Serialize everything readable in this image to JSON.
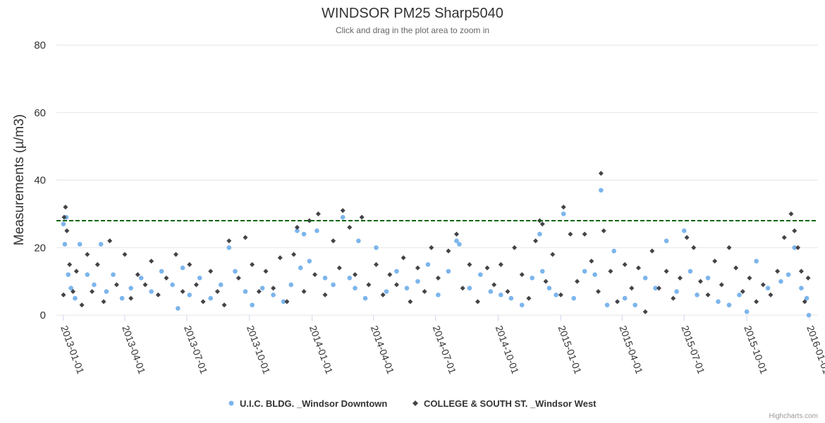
{
  "chart_data": {
    "type": "scatter",
    "title": "WINDSOR PM25 Sharp5040",
    "subtitle": "Click and drag in the plot area to zoom in",
    "ylabel": "Measurements (µ/m3)",
    "xlabel": "",
    "ylim": [
      0,
      80
    ],
    "yticks": [
      0,
      20,
      40,
      60,
      80
    ],
    "xlim": [
      "2013-01-01",
      "2016-01-01"
    ],
    "xticks": [
      "2013-01-01",
      "2013-04-01",
      "2013-07-01",
      "2013-10-01",
      "2014-01-01",
      "2014-04-01",
      "2014-07-01",
      "2014-10-01",
      "2015-01-01",
      "2015-04-01",
      "2015-07-01",
      "2015-10-01",
      "2016-01-01"
    ],
    "reference_line": {
      "y": 28,
      "color": "#006400",
      "style": "dashed"
    },
    "grid": true,
    "legend_position": "bottom",
    "credits": "Highcharts.com",
    "series": [
      {
        "name": "U.I.C. BLDG. _Windsor Downtown",
        "color": "#7cb5ec",
        "marker": "circle",
        "points": [
          [
            "2013-01-01",
            27
          ],
          [
            "2013-01-03",
            21
          ],
          [
            "2013-01-05",
            29
          ],
          [
            "2013-01-08",
            12
          ],
          [
            "2013-01-12",
            8
          ],
          [
            "2013-01-18",
            5
          ],
          [
            "2013-01-25",
            21
          ],
          [
            "2013-02-05",
            12
          ],
          [
            "2013-02-15",
            9
          ],
          [
            "2013-02-25",
            21
          ],
          [
            "2013-03-05",
            7
          ],
          [
            "2013-03-15",
            12
          ],
          [
            "2013-03-28",
            5
          ],
          [
            "2013-04-10",
            8
          ],
          [
            "2013-04-25",
            11
          ],
          [
            "2013-05-10",
            7
          ],
          [
            "2013-05-25",
            13
          ],
          [
            "2013-06-10",
            9
          ],
          [
            "2013-06-18",
            2
          ],
          [
            "2013-06-25",
            14
          ],
          [
            "2013-07-05",
            6
          ],
          [
            "2013-07-20",
            11
          ],
          [
            "2013-08-05",
            5
          ],
          [
            "2013-08-20",
            9
          ],
          [
            "2013-09-01",
            20
          ],
          [
            "2013-09-10",
            13
          ],
          [
            "2013-09-25",
            7
          ],
          [
            "2013-10-05",
            3
          ],
          [
            "2013-10-20",
            8
          ],
          [
            "2013-11-05",
            6
          ],
          [
            "2013-11-20",
            4
          ],
          [
            "2013-12-01",
            9
          ],
          [
            "2013-12-10",
            25
          ],
          [
            "2013-12-15",
            14
          ],
          [
            "2013-12-20",
            24
          ],
          [
            "2013-12-28",
            16
          ],
          [
            "2014-01-08",
            25
          ],
          [
            "2014-01-20",
            11
          ],
          [
            "2014-02-01",
            9
          ],
          [
            "2014-02-15",
            29
          ],
          [
            "2014-02-25",
            11
          ],
          [
            "2014-03-05",
            8
          ],
          [
            "2014-03-10",
            22
          ],
          [
            "2014-03-20",
            5
          ],
          [
            "2014-04-05",
            20
          ],
          [
            "2014-04-20",
            7
          ],
          [
            "2014-05-05",
            13
          ],
          [
            "2014-05-20",
            8
          ],
          [
            "2014-06-05",
            10
          ],
          [
            "2014-06-20",
            15
          ],
          [
            "2014-07-05",
            6
          ],
          [
            "2014-07-20",
            13
          ],
          [
            "2014-08-01",
            22
          ],
          [
            "2014-08-05",
            21
          ],
          [
            "2014-08-20",
            8
          ],
          [
            "2014-09-05",
            12
          ],
          [
            "2014-09-20",
            7
          ],
          [
            "2014-10-05",
            6
          ],
          [
            "2014-10-20",
            5
          ],
          [
            "2014-11-05",
            3
          ],
          [
            "2014-11-20",
            11
          ],
          [
            "2014-12-01",
            24
          ],
          [
            "2014-12-05",
            13
          ],
          [
            "2014-12-15",
            8
          ],
          [
            "2014-12-25",
            6
          ],
          [
            "2015-01-05",
            30
          ],
          [
            "2015-01-20",
            5
          ],
          [
            "2015-02-05",
            13
          ],
          [
            "2015-02-20",
            12
          ],
          [
            "2015-03-01",
            37
          ],
          [
            "2015-03-10",
            3
          ],
          [
            "2015-03-20",
            19
          ],
          [
            "2015-04-05",
            5
          ],
          [
            "2015-04-20",
            3
          ],
          [
            "2015-05-05",
            11
          ],
          [
            "2015-05-20",
            8
          ],
          [
            "2015-06-05",
            22
          ],
          [
            "2015-06-20",
            7
          ],
          [
            "2015-07-01",
            25
          ],
          [
            "2015-07-10",
            13
          ],
          [
            "2015-07-20",
            6
          ],
          [
            "2015-08-05",
            11
          ],
          [
            "2015-08-20",
            4
          ],
          [
            "2015-09-05",
            3
          ],
          [
            "2015-09-20",
            6
          ],
          [
            "2015-10-01",
            1
          ],
          [
            "2015-10-15",
            16
          ],
          [
            "2015-11-01",
            8
          ],
          [
            "2015-11-20",
            10
          ],
          [
            "2015-12-01",
            12
          ],
          [
            "2015-12-10",
            20
          ],
          [
            "2015-12-20",
            8
          ],
          [
            "2015-12-28",
            5
          ],
          [
            "2015-12-31",
            0
          ]
        ]
      },
      {
        "name": "COLLEGE & SOUTH ST. _Windsor West",
        "color": "#434348",
        "marker": "diamond",
        "points": [
          [
            "2013-01-01",
            6
          ],
          [
            "2013-01-02",
            29
          ],
          [
            "2013-01-04",
            32
          ],
          [
            "2013-01-06",
            25
          ],
          [
            "2013-01-10",
            15
          ],
          [
            "2013-01-15",
            7
          ],
          [
            "2013-01-20",
            13
          ],
          [
            "2013-01-28",
            3
          ],
          [
            "2013-02-05",
            18
          ],
          [
            "2013-02-12",
            7
          ],
          [
            "2013-02-20",
            15
          ],
          [
            "2013-03-01",
            4
          ],
          [
            "2013-03-10",
            22
          ],
          [
            "2013-03-20",
            9
          ],
          [
            "2013-04-01",
            18
          ],
          [
            "2013-04-10",
            5
          ],
          [
            "2013-04-20",
            12
          ],
          [
            "2013-05-01",
            9
          ],
          [
            "2013-05-10",
            16
          ],
          [
            "2013-05-20",
            6
          ],
          [
            "2013-06-01",
            11
          ],
          [
            "2013-06-15",
            18
          ],
          [
            "2013-06-25",
            7
          ],
          [
            "2013-07-05",
            15
          ],
          [
            "2013-07-15",
            9
          ],
          [
            "2013-07-25",
            4
          ],
          [
            "2013-08-05",
            13
          ],
          [
            "2013-08-15",
            7
          ],
          [
            "2013-08-25",
            3
          ],
          [
            "2013-09-01",
            22
          ],
          [
            "2013-09-15",
            11
          ],
          [
            "2013-09-25",
            23
          ],
          [
            "2013-10-05",
            15
          ],
          [
            "2013-10-15",
            7
          ],
          [
            "2013-10-25",
            13
          ],
          [
            "2013-11-05",
            8
          ],
          [
            "2013-11-15",
            17
          ],
          [
            "2013-11-25",
            4
          ],
          [
            "2013-12-05",
            18
          ],
          [
            "2013-12-10",
            26
          ],
          [
            "2013-12-20",
            7
          ],
          [
            "2013-12-28",
            28
          ],
          [
            "2014-01-05",
            12
          ],
          [
            "2014-01-10",
            30
          ],
          [
            "2014-01-20",
            6
          ],
          [
            "2014-02-01",
            22
          ],
          [
            "2014-02-10",
            14
          ],
          [
            "2014-02-15",
            31
          ],
          [
            "2014-02-25",
            26
          ],
          [
            "2014-03-05",
            12
          ],
          [
            "2014-03-15",
            29
          ],
          [
            "2014-03-25",
            9
          ],
          [
            "2014-04-05",
            15
          ],
          [
            "2014-04-15",
            6
          ],
          [
            "2014-04-25",
            12
          ],
          [
            "2014-05-05",
            9
          ],
          [
            "2014-05-15",
            17
          ],
          [
            "2014-05-25",
            4
          ],
          [
            "2014-06-05",
            14
          ],
          [
            "2014-06-15",
            7
          ],
          [
            "2014-06-25",
            20
          ],
          [
            "2014-07-05",
            11
          ],
          [
            "2014-07-20",
            19
          ],
          [
            "2014-08-01",
            24
          ],
          [
            "2014-08-10",
            8
          ],
          [
            "2014-08-20",
            15
          ],
          [
            "2014-09-01",
            4
          ],
          [
            "2014-09-15",
            14
          ],
          [
            "2014-09-25",
            9
          ],
          [
            "2014-10-05",
            15
          ],
          [
            "2014-10-15",
            7
          ],
          [
            "2014-10-25",
            20
          ],
          [
            "2014-11-05",
            12
          ],
          [
            "2014-11-15",
            5
          ],
          [
            "2014-11-25",
            22
          ],
          [
            "2014-12-01",
            28
          ],
          [
            "2014-12-05",
            27
          ],
          [
            "2014-12-10",
            10
          ],
          [
            "2014-12-20",
            18
          ],
          [
            "2015-01-01",
            6
          ],
          [
            "2015-01-05",
            32
          ],
          [
            "2015-01-15",
            24
          ],
          [
            "2015-01-25",
            10
          ],
          [
            "2015-02-05",
            24
          ],
          [
            "2015-02-15",
            16
          ],
          [
            "2015-02-25",
            7
          ],
          [
            "2015-03-01",
            42
          ],
          [
            "2015-03-05",
            25
          ],
          [
            "2015-03-15",
            13
          ],
          [
            "2015-03-25",
            4
          ],
          [
            "2015-04-05",
            15
          ],
          [
            "2015-04-15",
            8
          ],
          [
            "2015-04-25",
            14
          ],
          [
            "2015-05-05",
            1
          ],
          [
            "2015-05-15",
            19
          ],
          [
            "2015-05-25",
            8
          ],
          [
            "2015-06-05",
            13
          ],
          [
            "2015-06-15",
            5
          ],
          [
            "2015-06-25",
            11
          ],
          [
            "2015-07-05",
            23
          ],
          [
            "2015-07-15",
            20
          ],
          [
            "2015-07-25",
            10
          ],
          [
            "2015-08-05",
            6
          ],
          [
            "2015-08-15",
            16
          ],
          [
            "2015-08-25",
            9
          ],
          [
            "2015-09-05",
            20
          ],
          [
            "2015-09-15",
            14
          ],
          [
            "2015-09-25",
            7
          ],
          [
            "2015-10-05",
            11
          ],
          [
            "2015-10-15",
            4
          ],
          [
            "2015-10-25",
            9
          ],
          [
            "2015-11-05",
            6
          ],
          [
            "2015-11-15",
            13
          ],
          [
            "2015-11-25",
            23
          ],
          [
            "2015-12-05",
            30
          ],
          [
            "2015-12-10",
            25
          ],
          [
            "2015-12-15",
            20
          ],
          [
            "2015-12-20",
            13
          ],
          [
            "2015-12-25",
            4
          ],
          [
            "2015-12-30",
            11
          ]
        ]
      }
    ]
  }
}
